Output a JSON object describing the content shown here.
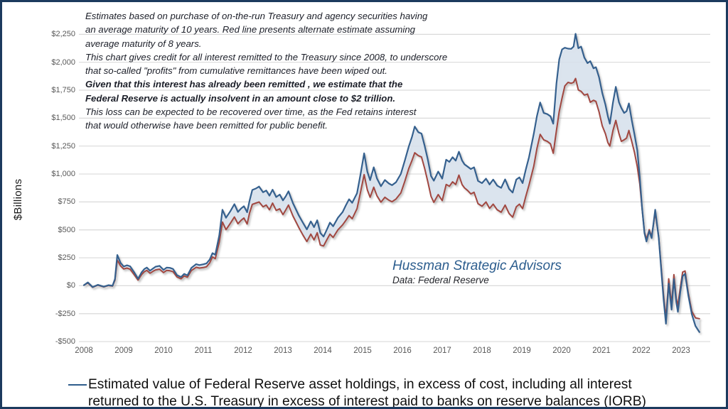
{
  "frame": {
    "border_color": "#1C3A5E",
    "background": "#FFFFFF"
  },
  "annotation": {
    "lines": [
      {
        "text": "Estimates based on purchase of on-the-run Treasury and agency securities having",
        "bold": false
      },
      {
        "text": "an average maturity of 10 years. Red line presents alternate estimate assuming",
        "bold": false
      },
      {
        "text": "average maturity of 8 years.",
        "bold": false
      },
      {
        "text": "This chart gives credit for all interest remitted to the Treasury since 2008, to underscore",
        "bold": false
      },
      {
        "text": "that so-called \"profits\" from cumulative remittances have been wiped out.",
        "bold": false
      },
      {
        "text": "Given that this interest has already been remitted , we estimate that the",
        "bold": true
      },
      {
        "text": "Federal Reserve is actually insolvent in an amount close to $2 trillion.",
        "bold": true
      },
      {
        "text": "This loss can be expected  to be recovered over time, as the Fed retains interest",
        "bold": false
      },
      {
        "text": "that would otherwise have been remitted for public benefit.",
        "bold": false
      }
    ]
  },
  "watermark": {
    "title": "Hussman Strategic Advisors",
    "subtitle": "Data: Federal Reserve"
  },
  "legend": {
    "marker_color": "#2E5D8C",
    "line1": "Estimated value of Federal Reserve asset holdings, in excess of cost, including all interest",
    "line2": "returned to the U.S. Treasury in excess of interest paid to banks on reserve balances (IORB)"
  },
  "chart_data": {
    "type": "line",
    "title": "",
    "xlabel": "",
    "ylabel": "$Billions",
    "ylim": [
      -500,
      2250
    ],
    "x_range": [
      2008,
      2023.6
    ],
    "grid": true,
    "grid_color": "#D9D9D9",
    "fill_between": {
      "color": "#DCE6F2",
      "opacity": 0.8
    },
    "y_ticks": [
      {
        "value": 2250,
        "label": "$2,250"
      },
      {
        "value": 2000,
        "label": "$2,000"
      },
      {
        "value": 1750,
        "label": "$1,750"
      },
      {
        "value": 1500,
        "label": "$1,500"
      },
      {
        "value": 1250,
        "label": "$1,250"
      },
      {
        "value": 1000,
        "label": "$1,000"
      },
      {
        "value": 750,
        "label": "$750"
      },
      {
        "value": 500,
        "label": "$500"
      },
      {
        "value": 250,
        "label": "$250"
      },
      {
        "value": 0,
        "label": "$0"
      },
      {
        "value": -250,
        "label": "-$250"
      },
      {
        "value": -500,
        "label": "-$500"
      }
    ],
    "x_ticks": [
      "2008",
      "2009",
      "2010",
      "2011",
      "2012",
      "2013",
      "2014",
      "2015",
      "2016",
      "2017",
      "2018",
      "2019",
      "2020",
      "2021",
      "2022",
      "2023"
    ],
    "x": [
      2008.0,
      2008.1,
      2008.22,
      2008.35,
      2008.5,
      2008.62,
      2008.72,
      2008.78,
      2008.84,
      2008.92,
      2009.0,
      2009.08,
      2009.16,
      2009.26,
      2009.36,
      2009.45,
      2009.52,
      2009.58,
      2009.66,
      2009.74,
      2009.8,
      2009.9,
      2010.0,
      2010.08,
      2010.16,
      2010.24,
      2010.34,
      2010.44,
      2010.52,
      2010.6,
      2010.7,
      2010.82,
      2010.9,
      2011.0,
      2011.08,
      2011.16,
      2011.23,
      2011.3,
      2011.4,
      2011.48,
      2011.57,
      2011.68,
      2011.78,
      2011.87,
      2011.95,
      2012.02,
      2012.1,
      2012.16,
      2012.23,
      2012.32,
      2012.4,
      2012.5,
      2012.58,
      2012.66,
      2012.74,
      2012.83,
      2012.92,
      2013.0,
      2013.07,
      2013.14,
      2013.25,
      2013.4,
      2013.5,
      2013.6,
      2013.7,
      2013.78,
      2013.86,
      2013.94,
      2014.02,
      2014.1,
      2014.18,
      2014.26,
      2014.38,
      2014.5,
      2014.58,
      2014.66,
      2014.74,
      2014.86,
      2014.95,
      2015.04,
      2015.12,
      2015.19,
      2015.28,
      2015.36,
      2015.46,
      2015.56,
      2015.66,
      2015.74,
      2015.84,
      2015.96,
      2016.06,
      2016.16,
      2016.24,
      2016.31,
      2016.4,
      2016.48,
      2016.56,
      2016.64,
      2016.72,
      2016.79,
      2016.9,
      2017.0,
      2017.1,
      2017.18,
      2017.26,
      2017.34,
      2017.42,
      2017.5,
      2017.56,
      2017.64,
      2017.72,
      2017.8,
      2017.9,
      2018.0,
      2018.1,
      2018.19,
      2018.28,
      2018.38,
      2018.48,
      2018.58,
      2018.68,
      2018.77,
      2018.86,
      2018.94,
      2019.02,
      2019.1,
      2019.18,
      2019.3,
      2019.38,
      2019.46,
      2019.55,
      2019.64,
      2019.72,
      2019.79,
      2019.87,
      2019.94,
      2020.01,
      2020.08,
      2020.16,
      2020.24,
      2020.3,
      2020.35,
      2020.42,
      2020.49,
      2020.57,
      2020.65,
      2020.72,
      2020.8,
      2020.86,
      2020.94,
      2021.02,
      2021.1,
      2021.16,
      2021.21,
      2021.29,
      2021.36,
      2021.44,
      2021.5,
      2021.57,
      2021.63,
      2021.69,
      2021.76,
      2021.83,
      2021.9,
      2021.96,
      2022.02,
      2022.08,
      2022.13,
      2022.2,
      2022.26,
      2022.35,
      2022.44,
      2022.5,
      2022.56,
      2022.62,
      2022.69,
      2022.76,
      2022.82,
      2022.88,
      2022.92,
      2022.98,
      2023.04,
      2023.1,
      2023.18,
      2023.27,
      2023.36,
      2023.46
    ],
    "series": [
      {
        "name": "Estimate assuming average maturity of 10 years (blue line)",
        "color": "#35618E",
        "values": [
          5,
          30,
          -12,
          8,
          -8,
          5,
          0,
          60,
          275,
          205,
          172,
          183,
          174,
          122,
          63,
          120,
          150,
          163,
          134,
          155,
          170,
          178,
          142,
          163,
          160,
          150,
          95,
          78,
          106,
          92,
          160,
          193,
          185,
          192,
          200,
          235,
          292,
          278,
          450,
          680,
          608,
          668,
          730,
          660,
          692,
          712,
          658,
          760,
          857,
          870,
          888,
          836,
          852,
          806,
          860,
          794,
          816,
          764,
          800,
          845,
          740,
          628,
          565,
          504,
          576,
          524,
          586,
          472,
          440,
          500,
          565,
          532,
          608,
          660,
          720,
          774,
          742,
          828,
          1000,
          1185,
          1020,
          945,
          1060,
          960,
          890,
          946,
          915,
          900,
          926,
          1000,
          1120,
          1246,
          1330,
          1425,
          1374,
          1362,
          1250,
          1128,
          982,
          940,
          1022,
          958,
          1128,
          1108,
          1150,
          1120,
          1200,
          1120,
          1086,
          1066,
          1044,
          1060,
          938,
          918,
          958,
          906,
          950,
          896,
          876,
          952,
          866,
          834,
          950,
          970,
          918,
          1040,
          1150,
          1360,
          1520,
          1640,
          1546,
          1536,
          1516,
          1450,
          1810,
          2025,
          2115,
          2130,
          2122,
          2120,
          2140,
          2255,
          2126,
          2140,
          2042,
          1992,
          2010,
          1946,
          1956,
          1866,
          1726,
          1620,
          1516,
          1450,
          1640,
          1780,
          1642,
          1590,
          1546,
          1562,
          1632,
          1482,
          1352,
          1212,
          976,
          700,
          470,
          396,
          490,
          426,
          680,
          426,
          150,
          -124,
          -340,
          20,
          -214,
          60,
          -150,
          -234,
          -58,
          86,
          106,
          -84,
          -254,
          -360,
          -415
        ]
      },
      {
        "name": "Alternate estimate assuming average maturity of 8 years (red line)",
        "color": "#A1463F",
        "values": [
          5,
          25,
          -14,
          5,
          -10,
          2,
          -3,
          48,
          230,
          178,
          150,
          158,
          148,
          100,
          50,
          100,
          126,
          138,
          112,
          130,
          142,
          148,
          118,
          138,
          134,
          126,
          78,
          62,
          88,
          76,
          136,
          165,
          158,
          163,
          170,
          205,
          258,
          242,
          390,
          570,
          502,
          560,
          615,
          555,
          586,
          606,
          552,
          650,
          728,
          740,
          750,
          706,
          722,
          680,
          740,
          674,
          688,
          636,
          678,
          722,
          625,
          520,
          455,
          396,
          462,
          410,
          474,
          364,
          356,
          410,
          462,
          432,
          500,
          545,
          585,
          628,
          600,
          690,
          840,
          995,
          858,
          792,
          882,
          805,
          748,
          792,
          766,
          752,
          776,
          830,
          935,
          1050,
          1120,
          1190,
          1164,
          1152,
          1048,
          930,
          800,
          746,
          816,
          762,
          906,
          890,
          930,
          906,
          990,
          905,
          876,
          852,
          822,
          836,
          734,
          712,
          750,
          692,
          730,
          680,
          658,
          722,
          646,
          614,
          706,
          730,
          690,
          800,
          902,
          1070,
          1230,
          1355,
          1306,
          1292,
          1270,
          1186,
          1390,
          1560,
          1680,
          1788,
          1820,
          1812,
          1820,
          1855,
          1752,
          1740,
          1706,
          1716,
          1642,
          1660,
          1650,
          1556,
          1432,
          1360,
          1282,
          1250,
          1390,
          1480,
          1362,
          1292,
          1306,
          1322,
          1390,
          1292,
          1192,
          1066,
          916,
          692,
          482,
          416,
          502,
          440,
          656,
          432,
          172,
          -88,
          -294,
          62,
          -168,
          100,
          -118,
          -178,
          -16,
          122,
          132,
          -64,
          -228,
          -288,
          -295
        ]
      }
    ]
  }
}
